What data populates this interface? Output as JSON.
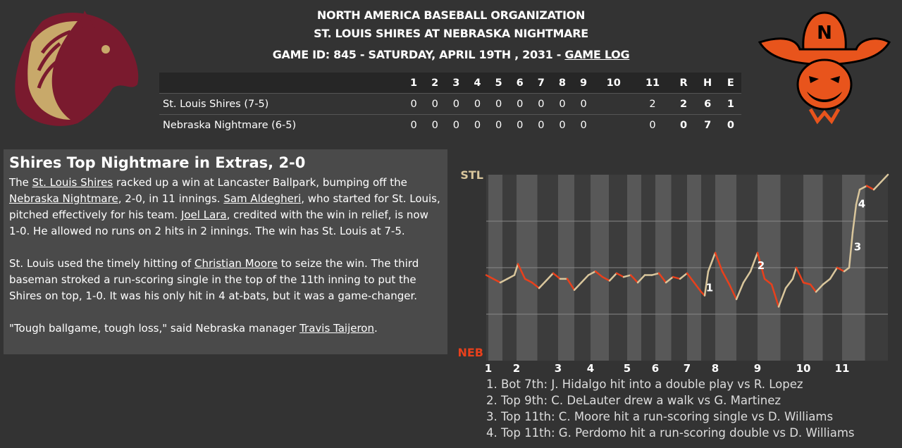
{
  "header": {
    "league": "NORTH AMERICA BASEBALL ORGANIZATION",
    "matchup": "ST. LOUIS SHIRES AT NEBRASKA NIGHTMARE",
    "game_info": "GAME ID: 845 - SATURDAY, APRIL 19TH , 2031 - ",
    "game_log": "GAME LOG"
  },
  "linescore": {
    "columns": [
      "1",
      "2",
      "3",
      "4",
      "5",
      "6",
      "7",
      "8",
      "9",
      "10",
      "11",
      "R",
      "H",
      "E"
    ],
    "rows": [
      {
        "team": "St. Louis Shires (7-5)",
        "cells": [
          "0",
          "0",
          "0",
          "0",
          "0",
          "0",
          "0",
          "0",
          "0",
          "",
          "2",
          "2",
          "6",
          "1"
        ]
      },
      {
        "team": "Nebraska Nightmare (6-5)",
        "cells": [
          "0",
          "0",
          "0",
          "0",
          "0",
          "0",
          "0",
          "0",
          "0",
          "",
          "0",
          "0",
          "7",
          "0"
        ]
      }
    ]
  },
  "article": {
    "title": "Shires Top Nightmare in Extras, 2-0",
    "paragraphs": [
      [
        "The ",
        {
          "link": "St. Louis Shires"
        },
        " racked up a win at Lancaster Ballpark, bumping off the ",
        {
          "link": "Nebraska Nightmare"
        },
        ", 2-0, in 11 innings. ",
        {
          "link": "Sam Aldegheri"
        },
        ", who started for St. Louis, pitched effectively for his team. ",
        {
          "link": "Joel Lara"
        },
        ", credited with the win in relief, is now 1-0. He allowed no runs on 2 hits in 2 innings. The win has St. Louis at 7-5."
      ],
      [
        "St. Louis used the timely hitting of ",
        {
          "link": "Christian Moore"
        },
        " to seize the win. The third baseman stroked a run-scoring single in the top of the 11th inning to put the Shires on top, 1-0. It was his only hit in 4 at-bats, but it was a game-changer."
      ],
      [
        "\"Tough ballgame, tough loss,\" said Nebraska manager ",
        {
          "link": "Travis Taijeron"
        },
        "."
      ]
    ]
  },
  "chart": {
    "type": "line",
    "top_label": "STL",
    "bottom_label": "NEB",
    "up_color": "#d9c69c",
    "down_color": "#e8401c",
    "xlim": [
      0,
      570
    ],
    "ylim": [
      0,
      1
    ],
    "gridlines": [
      0.25,
      0.5,
      0.75
    ],
    "xticks": [
      {
        "value": 3,
        "label": "1"
      },
      {
        "value": 43,
        "label": "2"
      },
      {
        "value": 102,
        "label": "3"
      },
      {
        "value": 148,
        "label": "4"
      },
      {
        "value": 200,
        "label": "5"
      },
      {
        "value": 240,
        "label": "6"
      },
      {
        "value": 285,
        "label": "7"
      },
      {
        "value": 325,
        "label": "8"
      },
      {
        "value": 385,
        "label": "9"
      },
      {
        "value": 450,
        "label": "10"
      },
      {
        "value": 505,
        "label": "11"
      }
    ],
    "x": [
      0,
      10,
      20,
      30,
      40,
      45,
      55,
      65,
      75,
      85,
      95,
      105,
      115,
      125,
      135,
      145,
      155,
      165,
      175,
      185,
      195,
      205,
      215,
      225,
      235,
      245,
      255,
      265,
      275,
      285,
      295,
      305,
      310,
      315,
      325,
      335,
      345,
      355,
      365,
      375,
      385,
      395,
      405,
      415,
      425,
      435,
      440,
      450,
      460,
      468,
      478,
      488,
      498,
      508,
      515,
      520,
      525,
      530,
      540,
      550,
      560,
      570
    ],
    "values": [
      0.46,
      0.44,
      0.42,
      0.44,
      0.46,
      0.52,
      0.44,
      0.42,
      0.39,
      0.43,
      0.47,
      0.44,
      0.44,
      0.38,
      0.42,
      0.46,
      0.48,
      0.45,
      0.43,
      0.47,
      0.45,
      0.46,
      0.42,
      0.46,
      0.46,
      0.47,
      0.42,
      0.45,
      0.44,
      0.47,
      0.42,
      0.37,
      0.35,
      0.48,
      0.58,
      0.48,
      0.41,
      0.33,
      0.42,
      0.48,
      0.58,
      0.44,
      0.41,
      0.29,
      0.39,
      0.44,
      0.5,
      0.42,
      0.41,
      0.37,
      0.41,
      0.44,
      0.5,
      0.48,
      0.5,
      0.69,
      0.84,
      0.92,
      0.94,
      0.92,
      0.96,
      1
    ],
    "annotations": [
      {
        "label": "1",
        "x": 317,
        "y": 0.39,
        "text": "1. Bot 7th: J. Hidalgo hit into a double play vs R. Lopez"
      },
      {
        "label": "2",
        "x": 390,
        "y": 0.51,
        "text": "2. Top 9th: C. DeLauter drew a walk vs G. Martinez"
      },
      {
        "label": "3",
        "x": 527,
        "y": 0.61,
        "text": "3. Top 11th: C. Moore hit a run-scoring single vs D. Williams"
      },
      {
        "label": "4",
        "x": 533,
        "y": 0.84,
        "text": "4. Top 11th: G. Perdomo hit a run-scoring double vs D. Williams"
      }
    ]
  }
}
